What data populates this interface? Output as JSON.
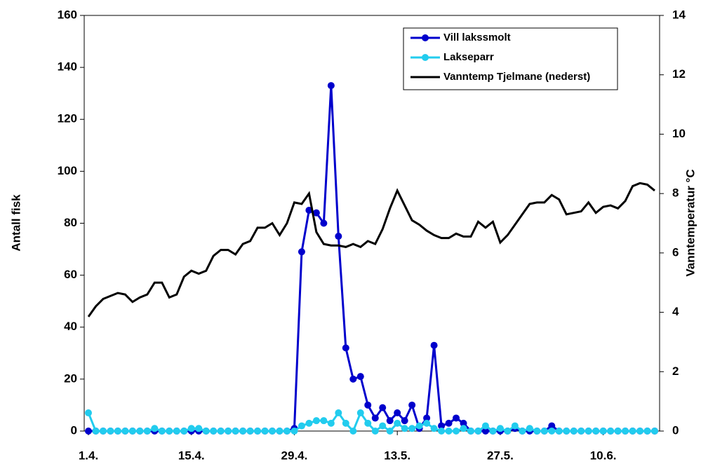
{
  "chart_data": {
    "type": "line",
    "categories": [
      "1.4.",
      null,
      null,
      null,
      null,
      null,
      null,
      null,
      null,
      null,
      null,
      null,
      null,
      null,
      "15.4.",
      null,
      null,
      null,
      null,
      null,
      null,
      null,
      null,
      null,
      null,
      null,
      null,
      null,
      "29.4.",
      null,
      null,
      null,
      null,
      null,
      null,
      null,
      null,
      null,
      null,
      null,
      null,
      null,
      "13.5.",
      null,
      null,
      null,
      null,
      null,
      null,
      null,
      null,
      null,
      null,
      null,
      null,
      null,
      "27.5.",
      null,
      null,
      null,
      null,
      null,
      null,
      null,
      null,
      null,
      null,
      null,
      null,
      null,
      "10.6.",
      null,
      null,
      null,
      null,
      null,
      null,
      null
    ],
    "y_label": "Antall fisk",
    "y2_label": "Vanntemperatur  °C",
    "ylim": [
      0,
      160
    ],
    "yticks": [
      0,
      20,
      40,
      60,
      80,
      100,
      120,
      140,
      160
    ],
    "y2lim": [
      0,
      14
    ],
    "y2ticks": [
      0,
      2,
      4,
      6,
      8,
      10,
      12,
      14
    ],
    "series": [
      {
        "name": "Vill lakssmolt",
        "color": "#0000cc",
        "marker": true,
        "values": [
          0,
          0,
          0,
          0,
          0,
          0,
          0,
          0,
          0,
          0,
          0,
          0,
          0,
          0,
          0,
          0,
          0,
          0,
          0,
          0,
          0,
          0,
          0,
          0,
          0,
          0,
          0,
          0,
          1,
          69,
          85,
          84,
          80,
          133,
          75,
          32,
          20,
          21,
          10,
          5,
          9,
          4,
          7,
          4,
          10,
          1,
          5,
          33,
          2,
          3,
          5,
          3,
          0,
          0,
          0,
          0,
          0,
          0,
          1,
          0,
          0,
          0,
          0,
          2,
          0,
          0,
          0,
          0,
          0,
          0,
          0,
          0,
          0,
          0,
          0,
          0,
          0,
          0
        ]
      },
      {
        "name": "Lakseparr",
        "color": "#22ccee",
        "marker": true,
        "values": [
          7,
          0,
          0,
          0,
          0,
          0,
          0,
          0,
          0,
          1,
          0,
          0,
          0,
          0,
          1,
          1,
          0,
          0,
          0,
          0,
          0,
          0,
          0,
          0,
          0,
          0,
          0,
          0,
          0,
          2,
          3,
          4,
          4,
          3,
          7,
          3,
          0,
          7,
          3,
          0,
          2,
          0,
          3,
          1,
          1,
          2,
          3,
          1,
          0,
          0,
          0,
          1,
          0,
          0,
          2,
          0,
          1,
          0,
          2,
          0,
          1,
          0,
          0,
          0,
          0,
          0,
          0,
          0,
          0,
          0,
          0,
          0,
          0,
          0,
          0,
          0,
          0,
          0
        ]
      },
      {
        "name": "Vanntemp Tjelmane (nederst)",
        "color": "#000000",
        "marker": false,
        "axis": "y2",
        "values": [
          3.85,
          4.2,
          4.45,
          4.55,
          4.65,
          4.6,
          4.35,
          4.5,
          4.6,
          5.0,
          5.0,
          4.5,
          4.6,
          5.2,
          5.4,
          5.3,
          5.4,
          5.9,
          6.1,
          6.1,
          5.95,
          6.3,
          6.4,
          6.85,
          6.85,
          7.0,
          6.6,
          7.0,
          7.7,
          7.65,
          8.0,
          6.7,
          6.3,
          6.25,
          6.25,
          6.2,
          6.3,
          6.2,
          6.4,
          6.3,
          6.8,
          7.5,
          8.1,
          7.6,
          7.1,
          6.95,
          6.75,
          6.6,
          6.5,
          6.5,
          6.65,
          6.55,
          6.55,
          7.05,
          6.85,
          7.05,
          6.35,
          6.6,
          6.95,
          7.3,
          7.65,
          7.7,
          7.7,
          7.95,
          7.8,
          7.3,
          7.35,
          7.4,
          7.7,
          7.35,
          7.55,
          7.6,
          7.5,
          7.75,
          8.25,
          8.35,
          8.3,
          8.1
        ]
      }
    ]
  }
}
